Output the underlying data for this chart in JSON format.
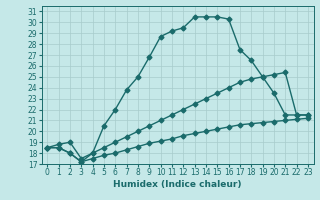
{
  "title": "",
  "xlabel": "Humidex (Indice chaleur)",
  "bg_color": "#c5e8e8",
  "line_color": "#1a6b6b",
  "grid_color": "#a8cccc",
  "xlim": [
    -0.5,
    23.5
  ],
  "ylim": [
    17,
    31.5
  ],
  "xticks": [
    0,
    1,
    2,
    3,
    4,
    5,
    6,
    7,
    8,
    9,
    10,
    11,
    12,
    13,
    14,
    15,
    16,
    17,
    18,
    19,
    20,
    21,
    22,
    23
  ],
  "yticks": [
    17,
    18,
    19,
    20,
    21,
    22,
    23,
    24,
    25,
    26,
    27,
    28,
    29,
    30,
    31
  ],
  "series1": [
    18.5,
    18.5,
    18.0,
    17.2,
    18.0,
    20.5,
    22.0,
    23.8,
    25.0,
    26.8,
    28.7,
    29.2,
    29.5,
    30.5,
    30.5,
    30.5,
    30.3,
    27.5,
    26.5,
    25.0,
    23.5,
    21.5,
    21.5,
    21.5
  ],
  "series2": [
    18.5,
    18.8,
    19.0,
    17.5,
    18.0,
    18.5,
    19.0,
    19.5,
    20.0,
    20.5,
    21.0,
    21.5,
    22.0,
    22.5,
    23.0,
    23.5,
    24.0,
    24.5,
    24.8,
    25.0,
    25.2,
    25.4,
    21.5,
    21.5
  ],
  "series3": [
    18.5,
    18.5,
    18.0,
    17.2,
    17.5,
    17.8,
    18.0,
    18.3,
    18.6,
    18.9,
    19.1,
    19.3,
    19.6,
    19.8,
    20.0,
    20.2,
    20.4,
    20.6,
    20.7,
    20.8,
    20.9,
    21.0,
    21.1,
    21.2
  ],
  "marker": "D",
  "markersize": 2.5,
  "linewidth": 1.0,
  "tick_fontsize": 5.5,
  "xlabel_fontsize": 6.5
}
